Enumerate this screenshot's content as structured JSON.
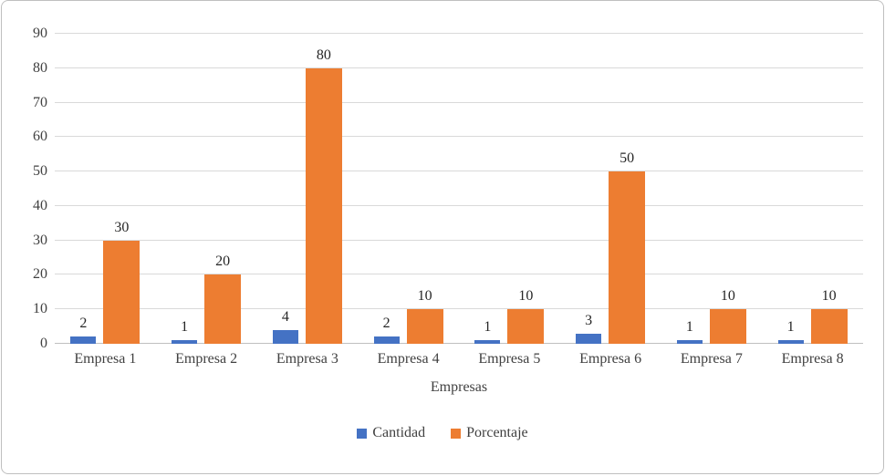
{
  "chart_data": {
    "type": "bar",
    "title": "",
    "xlabel": "Empresas",
    "ylabel": "",
    "ylim": [
      0,
      90
    ],
    "ytick_step": 10,
    "grid": true,
    "legend_position": "bottom",
    "categories": [
      "Empresa 1",
      "Empresa 2",
      "Empresa 3",
      "Empresa 4",
      "Empresa 5",
      "Empresa 6",
      "Empresa 7",
      "Empresa 8"
    ],
    "series": [
      {
        "name": "Cantidad",
        "color": "#4472C4",
        "values": [
          2,
          1,
          4,
          2,
          1,
          3,
          1,
          1
        ]
      },
      {
        "name": "Porcentaje",
        "color": "#ED7D31",
        "values": [
          30,
          20,
          80,
          10,
          10,
          50,
          10,
          10
        ]
      }
    ],
    "data_labels": true
  },
  "colors": {
    "gridline": "#d9d9d9",
    "axis": "#bfbfbf",
    "text": "#404040"
  }
}
